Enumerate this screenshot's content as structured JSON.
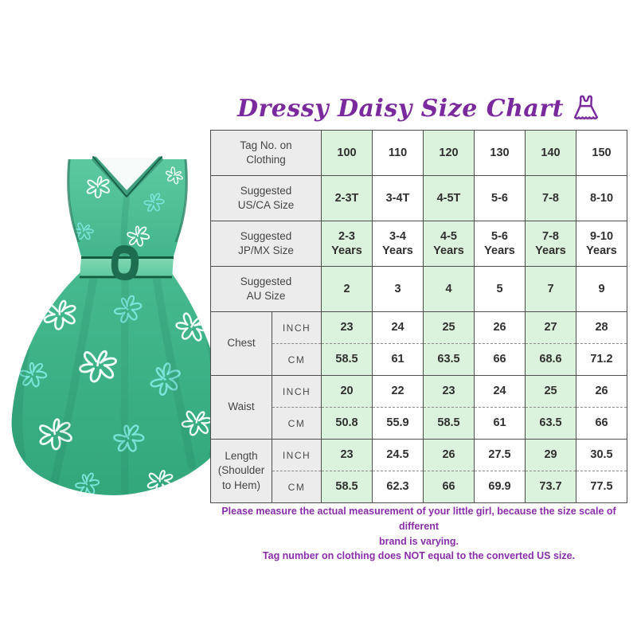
{
  "header": {
    "title": "Dressy Daisy Size Chart",
    "title_color": "#7b2a9e",
    "icon": "dress-icon"
  },
  "chart_data": {
    "type": "table",
    "title": "Dressy Daisy Size Chart",
    "rows": [
      {
        "label": "Tag No. on\nClothing",
        "values": [
          "100",
          "110",
          "120",
          "130",
          "140",
          "150"
        ]
      },
      {
        "label": "Suggested\nUS/CA Size",
        "values": [
          "2-3T",
          "3-4T",
          "4-5T",
          "5-6",
          "7-8",
          "8-10"
        ]
      },
      {
        "label": "Suggested\nJP/MX Size",
        "values": [
          "2-3\nYears",
          "3-4\nYears",
          "4-5\nYears",
          "5-6\nYears",
          "7-8\nYears",
          "9-10\nYears"
        ]
      },
      {
        "label": "Suggested\nAU Size",
        "values": [
          "2",
          "3",
          "4",
          "5",
          "7",
          "9"
        ]
      },
      {
        "label": "Chest",
        "unit_rows": [
          {
            "unit": "INCH",
            "values": [
              "23",
              "24",
              "25",
              "26",
              "27",
              "28"
            ]
          },
          {
            "unit": "CM",
            "values": [
              "58.5",
              "61",
              "63.5",
              "66",
              "68.6",
              "71.2"
            ]
          }
        ]
      },
      {
        "label": "Waist",
        "unit_rows": [
          {
            "unit": "INCH",
            "values": [
              "20",
              "22",
              "23",
              "24",
              "25",
              "26"
            ]
          },
          {
            "unit": "CM",
            "values": [
              "50.8",
              "55.9",
              "58.5",
              "61",
              "63.5",
              "66"
            ]
          }
        ]
      },
      {
        "label": "Length\n(Shoulder\nto Hem)",
        "unit_rows": [
          {
            "unit": "INCH",
            "values": [
              "23",
              "24.5",
              "26",
              "27.5",
              "29",
              "30.5"
            ]
          },
          {
            "unit": "CM",
            "values": [
              "58.5",
              "62.3",
              "66",
              "69.9",
              "73.7",
              "77.5"
            ]
          }
        ]
      }
    ],
    "layout": {
      "header_bg": "#ececec",
      "green_cell_bg": "#dbf2dc",
      "white_cell_bg": "#ffffff",
      "border_color": "#4d4d4d",
      "green_columns": [
        0,
        2,
        4
      ]
    }
  },
  "footer": {
    "line1": "Please measure the actual measurement of your little girl, because the size scale of different\nbrand is varying.",
    "line2": "Tag number on clothing does NOT equal to the converted US size.",
    "color": "#8a2dab"
  },
  "dress": {
    "description": "green sleeveless v-neck dress with white and cyan doodle flowers and belt",
    "main_color": "#43b58c",
    "belt_color": "#6fcfa6",
    "trim_color": "#146045",
    "doodle_colors": [
      "#f2fffb",
      "#7ae4d8"
    ]
  }
}
